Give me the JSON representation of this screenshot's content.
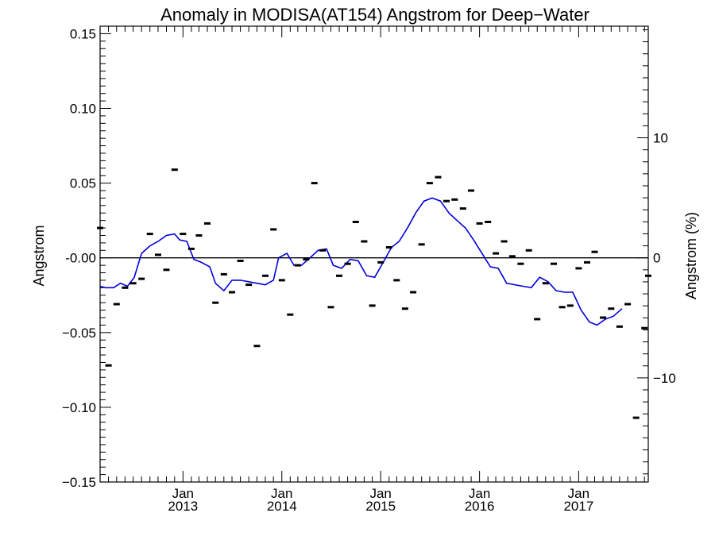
{
  "chart_data": {
    "type": "scatter",
    "title": "Anomaly in MODISA(AT154) Angstrom for Deep−Water",
    "ylabel": "Angstrom",
    "ylabel_right": "Angstrom (%)",
    "xlabel": "",
    "ylim": [
      -0.15,
      0.155
    ],
    "y_ticks": [
      0.15,
      0.1,
      0.05,
      0.0,
      -0.05,
      -0.1,
      -0.15
    ],
    "y_tick_labels": [
      "0.15",
      "0.10",
      "0.05",
      "-0.00",
      "−0.05",
      "−0.10",
      "−0.15"
    ],
    "right_ticks": [
      10,
      0,
      -10
    ],
    "right_tick_labels": [
      "10",
      "0",
      "−10"
    ],
    "right_axis_percent_per_unit": 124.5,
    "xlim": [
      "2012-03-01",
      "2017-09-15"
    ],
    "x_tick_labels": [
      {
        "date": "2013-01-01",
        "month": "Jan",
        "year": "2013"
      },
      {
        "date": "2014-01-01",
        "month": "Jan",
        "year": "2014"
      },
      {
        "date": "2015-01-01",
        "month": "Jan",
        "year": "2015"
      },
      {
        "date": "2016-01-01",
        "month": "Jan",
        "year": "2016"
      },
      {
        "date": "2017-01-01",
        "month": "Jan",
        "year": "2017"
      }
    ],
    "zero_line": true,
    "series": [
      {
        "kind": "monthly-anomaly-markers",
        "color": "#000000",
        "points": [
          [
            "2012-03-01",
            0.02
          ],
          [
            "2012-04-01",
            -0.072
          ],
          [
            "2012-05-01",
            -0.031
          ],
          [
            "2012-06-01",
            -0.02
          ],
          [
            "2012-07-01",
            -0.017
          ],
          [
            "2012-08-01",
            -0.014
          ],
          [
            "2012-09-01",
            0.016
          ],
          [
            "2012-10-01",
            0.002
          ],
          [
            "2012-11-01",
            -0.008
          ],
          [
            "2012-12-01",
            0.059
          ],
          [
            "2013-01-01",
            0.016
          ],
          [
            "2013-02-01",
            0.006
          ],
          [
            "2013-03-01",
            0.015
          ],
          [
            "2013-04-01",
            0.023
          ],
          [
            "2013-05-01",
            -0.03
          ],
          [
            "2013-06-01",
            -0.011
          ],
          [
            "2013-07-01",
            -0.023
          ],
          [
            "2013-08-01",
            -0.002
          ],
          [
            "2013-09-01",
            -0.018
          ],
          [
            "2013-10-01",
            -0.059
          ],
          [
            "2013-11-01",
            -0.012
          ],
          [
            "2013-12-01",
            0.019
          ],
          [
            "2014-01-01",
            -0.015
          ],
          [
            "2014-02-01",
            -0.038
          ],
          [
            "2014-03-01",
            -0.005
          ],
          [
            "2014-04-01",
            -0.001
          ],
          [
            "2014-05-01",
            0.05
          ],
          [
            "2014-06-01",
            0.005
          ],
          [
            "2014-07-01",
            -0.033
          ],
          [
            "2014-08-01",
            -0.012
          ],
          [
            "2014-09-01",
            -0.004
          ],
          [
            "2014-10-01",
            0.024
          ],
          [
            "2014-11-01",
            0.011
          ],
          [
            "2014-12-01",
            -0.032
          ],
          [
            "2015-01-01",
            -0.003
          ],
          [
            "2015-02-01",
            0.007
          ],
          [
            "2015-03-01",
            -0.015
          ],
          [
            "2015-04-01",
            -0.034
          ],
          [
            "2015-05-01",
            -0.023
          ],
          [
            "2015-06-01",
            0.009
          ],
          [
            "2015-07-01",
            0.05
          ],
          [
            "2015-08-01",
            0.054
          ],
          [
            "2015-09-01",
            0.038
          ],
          [
            "2015-10-01",
            0.039
          ],
          [
            "2015-11-01",
            0.033
          ],
          [
            "2015-12-01",
            0.045
          ],
          [
            "2016-01-01",
            0.023
          ],
          [
            "2016-02-01",
            0.024
          ],
          [
            "2016-03-01",
            0.003
          ],
          [
            "2016-04-01",
            0.011
          ],
          [
            "2016-05-01",
            0.001
          ],
          [
            "2016-06-01",
            -0.004
          ],
          [
            "2016-07-01",
            0.005
          ],
          [
            "2016-08-01",
            -0.041
          ],
          [
            "2016-09-01",
            -0.017
          ],
          [
            "2016-10-01",
            -0.004
          ],
          [
            "2016-11-01",
            -0.033
          ],
          [
            "2016-12-01",
            -0.032
          ],
          [
            "2017-01-01",
            -0.007
          ],
          [
            "2017-02-01",
            -0.003
          ],
          [
            "2017-03-01",
            0.004
          ],
          [
            "2017-04-01",
            -0.04
          ],
          [
            "2017-05-01",
            -0.034
          ],
          [
            "2017-06-01",
            -0.046
          ],
          [
            "2017-07-01",
            -0.031
          ],
          [
            "2017-08-01",
            -0.107
          ],
          [
            "2017-09-01",
            -0.047
          ],
          [
            "2017-09-15",
            -0.012
          ]
        ]
      },
      {
        "kind": "running-mean-line",
        "color": "#0000dd",
        "points": [
          [
            "2012-03-01",
            -0.019
          ],
          [
            "2012-03-20",
            -0.02
          ],
          [
            "2012-04-20",
            -0.02
          ],
          [
            "2012-05-15",
            -0.017
          ],
          [
            "2012-06-10",
            -0.019
          ],
          [
            "2012-07-05",
            -0.013
          ],
          [
            "2012-08-01",
            0.003
          ],
          [
            "2012-09-01",
            0.008
          ],
          [
            "2012-10-01",
            0.011
          ],
          [
            "2012-11-01",
            0.015
          ],
          [
            "2012-12-01",
            0.016
          ],
          [
            "2012-12-20",
            0.012
          ],
          [
            "2013-01-15",
            0.011
          ],
          [
            "2013-02-10",
            -0.001
          ],
          [
            "2013-03-10",
            -0.003
          ],
          [
            "2013-04-10",
            -0.006
          ],
          [
            "2013-05-01",
            -0.017
          ],
          [
            "2013-06-01",
            -0.022
          ],
          [
            "2013-07-01",
            -0.015
          ],
          [
            "2013-08-01",
            -0.015
          ],
          [
            "2013-09-01",
            -0.016
          ],
          [
            "2013-10-01",
            -0.017
          ],
          [
            "2013-11-01",
            -0.018
          ],
          [
            "2013-12-01",
            -0.015
          ],
          [
            "2013-12-20",
            -0.0
          ],
          [
            "2014-01-20",
            0.003
          ],
          [
            "2014-02-15",
            -0.005
          ],
          [
            "2014-03-15",
            -0.005
          ],
          [
            "2014-04-15",
            0.0
          ],
          [
            "2014-05-15",
            0.005
          ],
          [
            "2014-06-15",
            0.006
          ],
          [
            "2014-07-10",
            -0.005
          ],
          [
            "2014-08-10",
            -0.007
          ],
          [
            "2014-09-10",
            -0.001
          ],
          [
            "2014-10-10",
            -0.002
          ],
          [
            "2014-11-10",
            -0.012
          ],
          [
            "2014-12-10",
            -0.013
          ],
          [
            "2015-01-10",
            -0.003
          ],
          [
            "2015-02-10",
            0.007
          ],
          [
            "2015-03-10",
            0.011
          ],
          [
            "2015-04-10",
            0.02
          ],
          [
            "2015-05-10",
            0.03
          ],
          [
            "2015-06-10",
            0.038
          ],
          [
            "2015-07-10",
            0.04
          ],
          [
            "2015-08-10",
            0.038
          ],
          [
            "2015-09-10",
            0.03
          ],
          [
            "2015-10-10",
            0.025
          ],
          [
            "2015-11-10",
            0.02
          ],
          [
            "2015-12-10",
            0.012
          ],
          [
            "2016-01-10",
            0.003
          ],
          [
            "2016-02-10",
            -0.006
          ],
          [
            "2016-03-10",
            -0.007
          ],
          [
            "2016-04-10",
            -0.017
          ],
          [
            "2016-05-10",
            -0.018
          ],
          [
            "2016-06-10",
            -0.019
          ],
          [
            "2016-07-10",
            -0.02
          ],
          [
            "2016-08-10",
            -0.013
          ],
          [
            "2016-09-10",
            -0.016
          ],
          [
            "2016-10-10",
            -0.022
          ],
          [
            "2016-11-10",
            -0.023
          ],
          [
            "2016-12-10",
            -0.023
          ],
          [
            "2017-01-10",
            -0.035
          ],
          [
            "2017-02-10",
            -0.043
          ],
          [
            "2017-03-10",
            -0.045
          ],
          [
            "2017-04-10",
            -0.041
          ],
          [
            "2017-05-10",
            -0.039
          ],
          [
            "2017-06-10",
            -0.034
          ]
        ]
      }
    ]
  }
}
